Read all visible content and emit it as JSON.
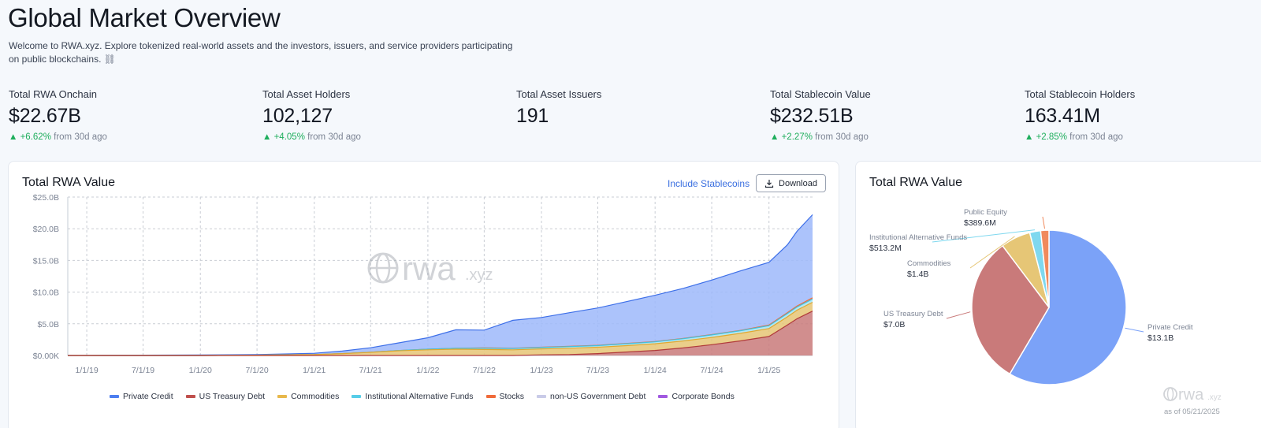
{
  "header": {
    "title": "Global Market Overview",
    "intro": "Welcome to RWA.xyz. Explore tokenized real-world assets and the investors, issuers, and service providers participating on public blockchains.",
    "link_glyph": "⛓"
  },
  "stats": [
    {
      "label": "Total RWA Onchain",
      "value": "$22.67B",
      "change": "+6.62%",
      "suffix": "from 30d ago"
    },
    {
      "label": "Total Asset Holders",
      "value": "102,127",
      "change": "+4.05%",
      "suffix": "from 30d ago"
    },
    {
      "label": "Total Asset Issuers",
      "value": "191",
      "change": "",
      "suffix": ""
    },
    {
      "label": "Total Stablecoin Value",
      "value": "$232.51B",
      "change": "+2.27%",
      "suffix": "from 30d ago"
    },
    {
      "label": "Total Stablecoin Holders",
      "value": "163.41M",
      "change": "+2.85%",
      "suffix": "from 30d ago"
    }
  ],
  "area_card": {
    "title": "Total RWA Value",
    "include_label": "Include Stablecoins",
    "download_label": "Download",
    "watermark_main": "rwa",
    "watermark_suffix": ".xyz"
  },
  "pie_card": {
    "title": "Total RWA Value",
    "watermark_main": "rwa",
    "watermark_suffix": ".xyz",
    "as_of": "as of 05/21/2025"
  },
  "colors": {
    "private_credit": "#7ba2f8",
    "us_treasury": "#c97a7a",
    "commodities": "#e6c676",
    "alt_funds": "#7fd8ef",
    "stocks": "#f08a5d",
    "non_us_gov": "#c9cbe8",
    "corporate_bonds": "#a86be0"
  },
  "chart_data": [
    {
      "type": "area",
      "title": "Total RWA Value",
      "stacked": true,
      "ylim": [
        0,
        25
      ],
      "ytick_labels": [
        "$0.00K",
        "$5.0B",
        "$10.0B",
        "$15.0B",
        "$20.0B",
        "$25.0B"
      ],
      "xtick_labels": [
        "1/1/19",
        "7/1/19",
        "1/1/20",
        "7/1/20",
        "1/1/21",
        "7/1/21",
        "1/1/22",
        "7/1/22",
        "1/1/23",
        "7/1/23",
        "1/1/24",
        "7/1/24",
        "1/1/25"
      ],
      "x": [
        "11/1/18",
        "1/1/19",
        "7/1/19",
        "1/1/20",
        "7/1/20",
        "1/1/21",
        "4/1/21",
        "7/1/21",
        "10/1/21",
        "1/1/22",
        "4/1/22",
        "7/1/22",
        "10/1/22",
        "1/1/23",
        "4/1/23",
        "7/1/23",
        "10/1/23",
        "1/1/24",
        "4/1/24",
        "7/1/24",
        "10/1/24",
        "1/1/25",
        "3/1/25",
        "4/1/25",
        "5/21/25"
      ],
      "series": [
        {
          "name": "US Treasury Debt",
          "values": [
            0,
            0,
            0,
            0,
            0,
            0,
            0,
            0,
            0,
            0,
            0,
            0,
            0,
            0.1,
            0.15,
            0.3,
            0.55,
            0.8,
            1.2,
            1.7,
            2.3,
            3.0,
            4.8,
            5.8,
            7.0
          ]
        },
        {
          "name": "Commodities",
          "values": [
            0,
            0,
            0,
            0,
            0.05,
            0.15,
            0.3,
            0.5,
            0.75,
            0.9,
            1.0,
            0.95,
            0.9,
            0.95,
            1.0,
            1.0,
            1.0,
            1.05,
            1.1,
            1.15,
            1.2,
            1.25,
            1.3,
            1.35,
            1.4
          ]
        },
        {
          "name": "Institutional Alternative Funds",
          "values": [
            0,
            0,
            0,
            0,
            0,
            0,
            0,
            0.02,
            0.05,
            0.1,
            0.15,
            0.2,
            0.2,
            0.2,
            0.25,
            0.25,
            0.3,
            0.3,
            0.35,
            0.4,
            0.4,
            0.45,
            0.5,
            0.5,
            0.51
          ]
        },
        {
          "name": "Stocks",
          "values": [
            0,
            0,
            0,
            0,
            0,
            0,
            0,
            0,
            0,
            0,
            0,
            0.05,
            0.05,
            0.05,
            0.05,
            0.05,
            0.05,
            0.05,
            0.05,
            0.05,
            0.05,
            0.1,
            0.15,
            0.15,
            0.2
          ]
        },
        {
          "name": "Private Credit",
          "values": [
            0,
            0.02,
            0.05,
            0.08,
            0.1,
            0.2,
            0.4,
            0.7,
            1.2,
            1.8,
            2.9,
            2.8,
            4.4,
            4.7,
            5.3,
            5.9,
            6.6,
            7.3,
            7.9,
            8.6,
            9.4,
            9.9,
            10.7,
            11.8,
            13.1
          ]
        }
      ]
    },
    {
      "type": "pie",
      "title": "Total RWA Value",
      "categories": [
        "Private Credit",
        "US Treasury Debt",
        "Commodities",
        "Institutional Alternative Funds",
        "Public Equity"
      ],
      "values": [
        13.1,
        7.0,
        1.4,
        0.5132,
        0.3896
      ],
      "value_labels": [
        "$13.1B",
        "$7.0B",
        "$1.4B",
        "$513.2M",
        "$389.6M"
      ]
    }
  ],
  "legend": [
    {
      "name": "Private Credit",
      "color": "#4d7ef0"
    },
    {
      "name": "US Treasury Debt",
      "color": "#c0504d"
    },
    {
      "name": "Commodities",
      "color": "#e8b84b"
    },
    {
      "name": "Institutional Alternative Funds",
      "color": "#57cde8"
    },
    {
      "name": "Stocks",
      "color": "#f06b3a"
    },
    {
      "name": "non-US Government Debt",
      "color": "#c9cbe8"
    },
    {
      "name": "Corporate Bonds",
      "color": "#a159e0"
    }
  ]
}
